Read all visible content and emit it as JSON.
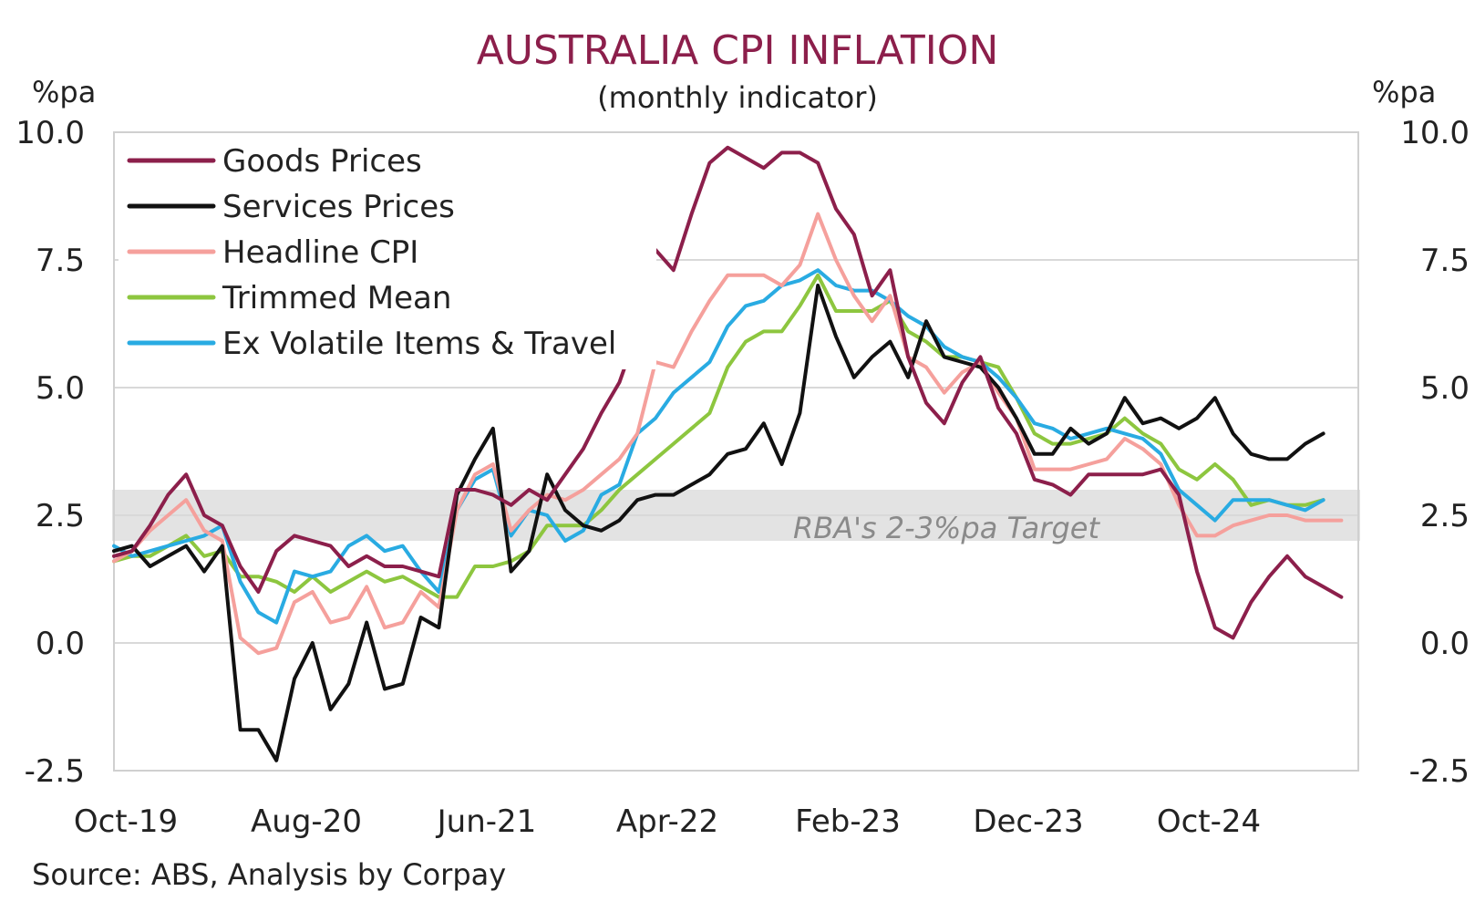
{
  "title": "AUSTRALIA CPI INFLATION",
  "subtitle": "(monthly indicator)",
  "left_unit": "%pa",
  "right_unit": "%pa",
  "source": "Source: ABS, Analysis by Corpay",
  "band_label": "RBA's 2-3%pa Target",
  "chart_data": {
    "type": "line",
    "title": "AUSTRALIA CPI INFLATION",
    "subtitle": "(monthly indicator)",
    "ylabel": "%pa",
    "ylim": [
      -2.5,
      10.0
    ],
    "yticks": [
      "10.0",
      "7.5",
      "5.0",
      "2.5",
      "0.0",
      "-2.5"
    ],
    "x_tick_labels": [
      "Oct-19",
      "Aug-20",
      "Jun-21",
      "Apr-22",
      "Feb-23",
      "Dec-23",
      "Oct-24"
    ],
    "x_tick_index": [
      0,
      10,
      20,
      30,
      40,
      50,
      60
    ],
    "x_start": "Oct-19",
    "x_frequency": "monthly",
    "grid": true,
    "legend_position": "top-left",
    "target_band": {
      "low": 2.0,
      "high": 3.0,
      "label": "RBA's 2-3%pa Target"
    },
    "series": [
      {
        "name": "Goods Prices",
        "color": "#8c1f4b",
        "values": [
          1.7,
          1.8,
          2.3,
          2.9,
          3.3,
          2.5,
          2.3,
          1.5,
          1.0,
          1.8,
          2.1,
          2.0,
          1.9,
          1.5,
          1.7,
          1.5,
          1.5,
          1.4,
          1.3,
          3.0,
          3.0,
          2.9,
          2.7,
          3.0,
          2.8,
          3.3,
          3.8,
          4.5,
          5.1,
          6.1,
          7.7,
          7.3,
          8.4,
          9.4,
          9.7,
          9.5,
          9.3,
          9.6,
          9.6,
          9.4,
          8.5,
          8.0,
          6.8,
          7.3,
          5.6,
          4.7,
          4.3,
          5.1,
          5.6,
          4.6,
          4.1,
          3.2,
          3.1,
          2.9,
          3.3,
          3.3,
          3.3,
          3.3,
          3.4,
          2.9,
          1.4,
          0.3,
          0.1,
          0.8,
          1.3,
          1.7,
          1.3,
          1.1,
          0.9
        ]
      },
      {
        "name": "Services Prices",
        "color": "#111111",
        "values": [
          1.8,
          1.9,
          1.5,
          1.7,
          1.9,
          1.4,
          1.9,
          -1.7,
          -1.7,
          -2.3,
          -0.7,
          0.0,
          -1.3,
          -0.8,
          0.4,
          -0.9,
          -0.8,
          0.5,
          0.3,
          2.9,
          3.6,
          4.2,
          1.4,
          1.8,
          3.3,
          2.6,
          2.3,
          2.2,
          2.4,
          2.8,
          2.9,
          2.9,
          3.1,
          3.3,
          3.7,
          3.8,
          4.3,
          3.5,
          4.5,
          7.0,
          6.0,
          5.2,
          5.6,
          5.9,
          5.2,
          6.3,
          5.6,
          5.5,
          5.4,
          5.0,
          4.4,
          3.7,
          3.7,
          4.2,
          3.9,
          4.1,
          4.8,
          4.3,
          4.4,
          4.2,
          4.4,
          4.8,
          4.1,
          3.7,
          3.6,
          3.6,
          3.9,
          4.1
        ]
      },
      {
        "name": "Headline CPI",
        "color": "#f5a09c",
        "values": [
          1.6,
          1.8,
          2.2,
          2.5,
          2.8,
          2.2,
          2.0,
          0.1,
          -0.2,
          -0.1,
          0.8,
          1.0,
          0.4,
          0.5,
          1.1,
          0.3,
          0.4,
          1.0,
          0.7,
          2.6,
          3.3,
          3.5,
          2.2,
          2.6,
          2.9,
          2.8,
          3.0,
          3.3,
          3.6,
          4.1,
          5.5,
          5.4,
          6.1,
          6.7,
          7.2,
          7.2,
          7.2,
          7.0,
          7.4,
          8.4,
          7.5,
          6.8,
          6.3,
          6.8,
          5.6,
          5.4,
          4.9,
          5.3,
          5.5,
          4.9,
          4.4,
          3.4,
          3.4,
          3.4,
          3.5,
          3.6,
          4.0,
          3.8,
          3.5,
          2.7,
          2.1,
          2.1,
          2.3,
          2.4,
          2.5,
          2.5,
          2.4,
          2.4,
          2.4
        ]
      },
      {
        "name": "Trimmed Mean",
        "color": "#8dc63f",
        "values": [
          1.6,
          1.7,
          1.7,
          1.9,
          2.1,
          1.7,
          1.8,
          1.3,
          1.3,
          1.2,
          1.0,
          1.3,
          1.0,
          1.2,
          1.4,
          1.2,
          1.3,
          1.1,
          0.9,
          0.9,
          1.5,
          1.5,
          1.6,
          1.8,
          2.3,
          2.3,
          2.3,
          2.6,
          3.0,
          3.3,
          3.6,
          3.9,
          4.2,
          4.5,
          5.4,
          5.9,
          6.1,
          6.1,
          6.6,
          7.2,
          6.5,
          6.5,
          6.5,
          6.7,
          6.1,
          5.9,
          5.6,
          5.6,
          5.5,
          5.4,
          4.8,
          4.1,
          3.9,
          3.9,
          4.0,
          4.1,
          4.4,
          4.1,
          3.9,
          3.4,
          3.2,
          3.5,
          3.2,
          2.7,
          2.8,
          2.7,
          2.7,
          2.8
        ]
      },
      {
        "name": "Ex Volatile Items & Travel",
        "color": "#29abe2",
        "values": [
          1.9,
          1.7,
          1.8,
          1.9,
          2.0,
          2.1,
          2.3,
          1.2,
          0.6,
          0.4,
          1.4,
          1.3,
          1.4,
          1.9,
          2.1,
          1.8,
          1.9,
          1.4,
          1.0,
          2.6,
          3.2,
          3.4,
          2.1,
          2.6,
          2.5,
          2.0,
          2.2,
          2.9,
          3.1,
          4.1,
          4.4,
          4.9,
          5.2,
          5.5,
          6.2,
          6.6,
          6.7,
          7.0,
          7.1,
          7.3,
          7.0,
          6.9,
          6.9,
          6.7,
          6.4,
          6.2,
          5.8,
          5.6,
          5.5,
          5.2,
          4.8,
          4.3,
          4.2,
          4.0,
          4.1,
          4.2,
          4.1,
          4.0,
          3.7,
          3.0,
          2.7,
          2.4,
          2.8,
          2.8,
          2.8,
          2.7,
          2.6,
          2.8
        ]
      }
    ]
  }
}
